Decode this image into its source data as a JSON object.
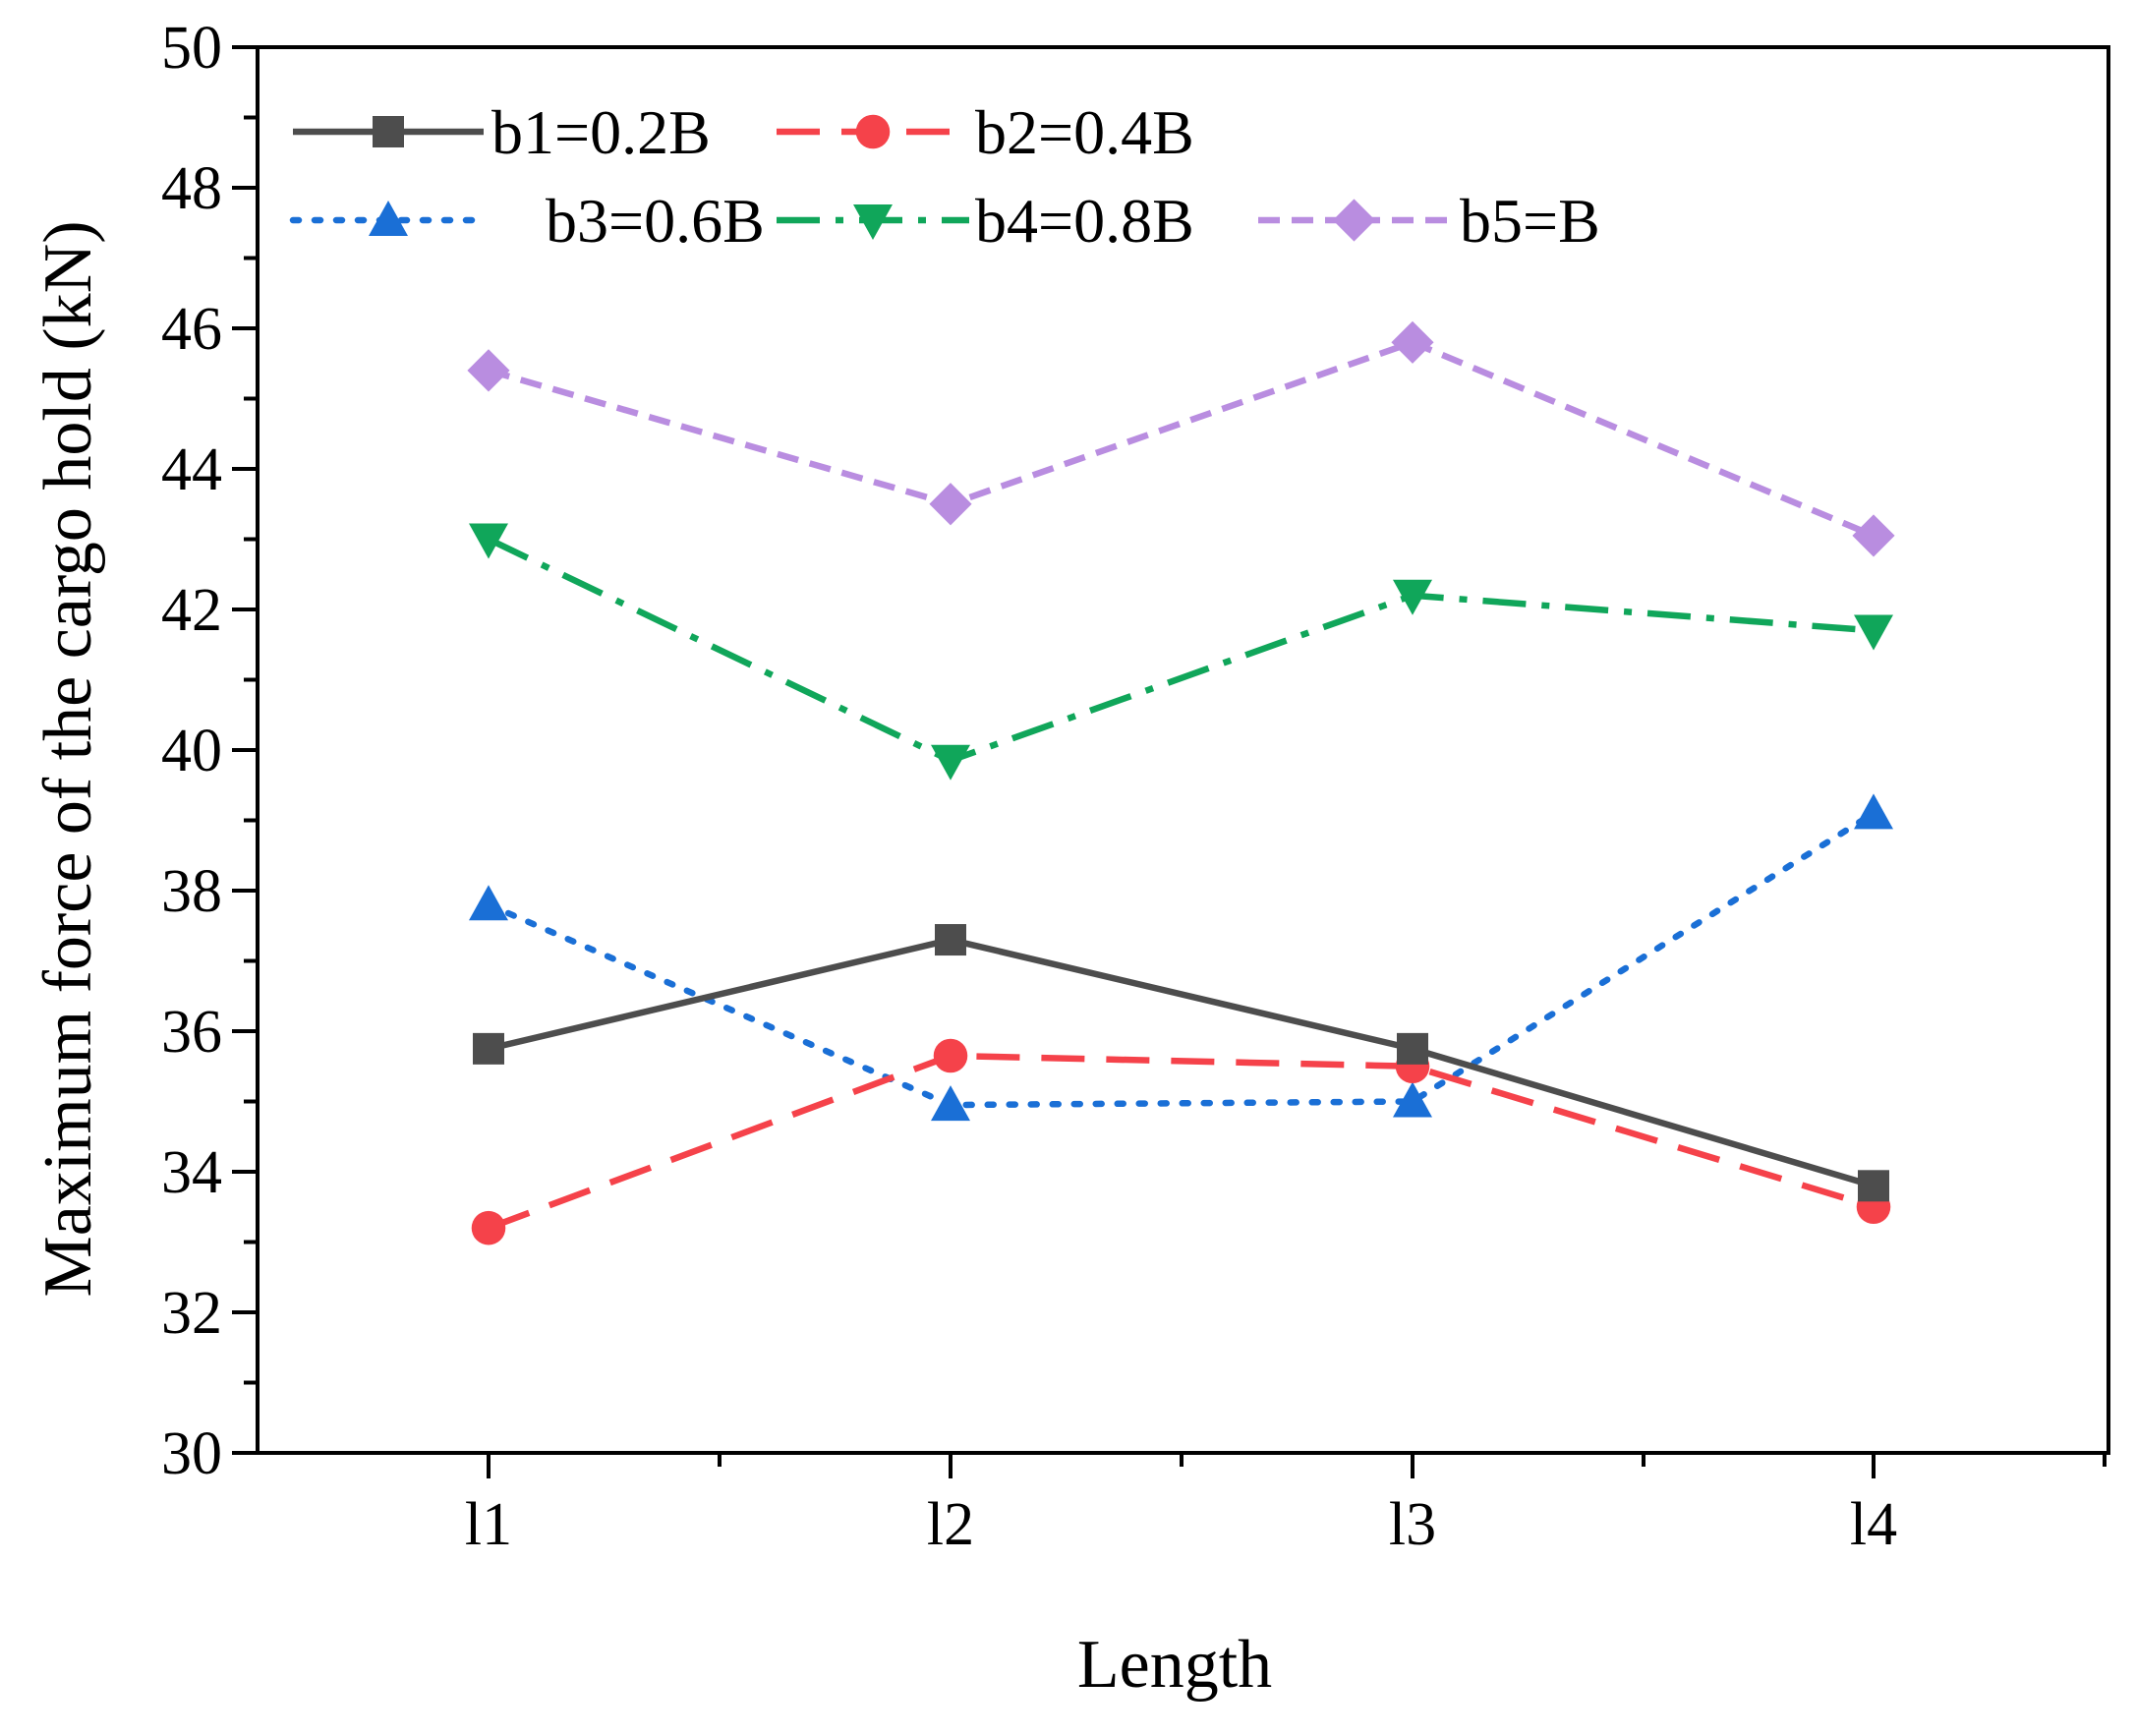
{
  "chart_data": {
    "type": "line",
    "title": "",
    "xlabel": "Length",
    "ylabel": "Maximum force of the cargo hold (kN)",
    "categories": [
      "l1",
      "l2",
      "l3",
      "l4"
    ],
    "ylim": [
      30,
      50
    ],
    "yticks": [
      30,
      32,
      34,
      36,
      38,
      40,
      42,
      44,
      46,
      48,
      50
    ],
    "grid": false,
    "legend_position": "top-left",
    "series": [
      {
        "name": "b1=0.2B",
        "values": [
          35.75,
          37.3,
          35.75,
          33.8
        ],
        "color": "#4d4d4d",
        "marker": "square",
        "dash": "solid"
      },
      {
        "name": "b2=0.4B",
        "values": [
          33.2,
          35.65,
          35.5,
          33.5
        ],
        "color": "#f5424a",
        "marker": "circle",
        "dash": "dash"
      },
      {
        "name": "b3=0.6B",
        "values": [
          37.8,
          34.95,
          35.0,
          39.1
        ],
        "color": "#1a6fd6",
        "marker": "triangle-up",
        "dash": "dot"
      },
      {
        "name": "b4=0.8B",
        "values": [
          43.0,
          39.85,
          42.2,
          41.7
        ],
        "color": "#10a65a",
        "marker": "triangle-down",
        "dash": "dashdot"
      },
      {
        "name": "b5=B",
        "values": [
          45.4,
          43.5,
          45.8,
          43.05
        ],
        "color": "#b98de0",
        "marker": "diamond",
        "dash": "shortdash"
      }
    ]
  }
}
